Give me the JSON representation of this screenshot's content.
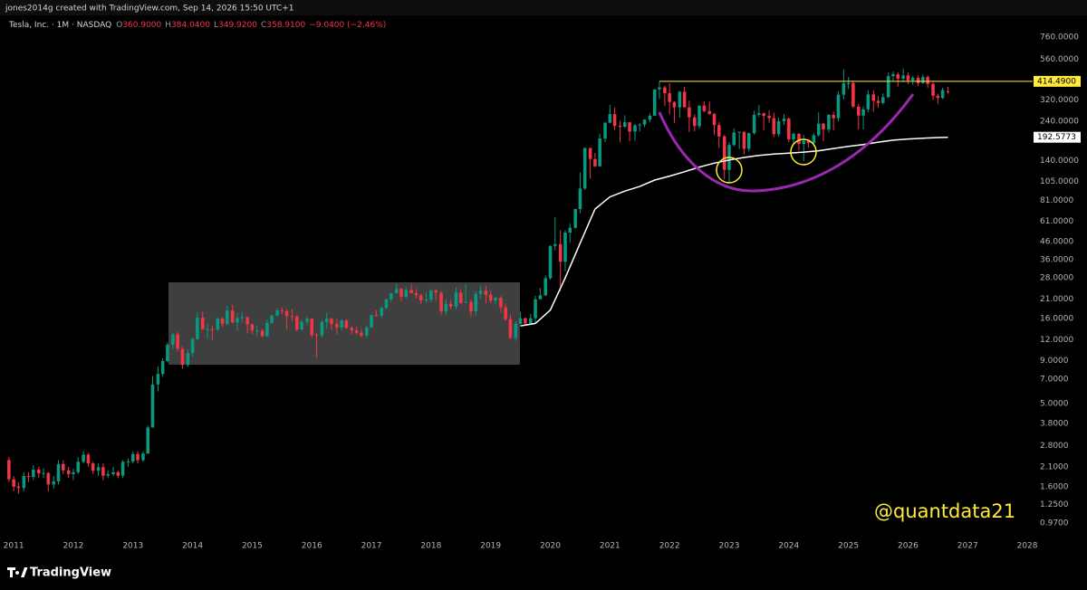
{
  "header": {
    "credit": "jones2014g created with TradingView.com, Sep 14, 2026 15:50 UTC+1",
    "symbol": "Tesla, Inc. · 1M · NASDAQ",
    "ohlc": [
      {
        "key": "O",
        "label": "360.9000"
      },
      {
        "key": "H",
        "label": "384.0400"
      },
      {
        "key": "L",
        "label": "349.9200"
      },
      {
        "key": "C",
        "label": "358.9100"
      }
    ],
    "change": "−9.0400 (−2.46%)"
  },
  "chart_data": {
    "type": "candlestick",
    "log_scale": true,
    "colors": {
      "up": "#089981",
      "down": "#f23645"
    },
    "x": [
      2010.92,
      2011.0,
      2011.08,
      2011.17,
      2011.25,
      2011.33,
      2011.42,
      2011.5,
      2011.58,
      2011.67,
      2011.75,
      2011.83,
      2011.92,
      2012.0,
      2012.08,
      2012.17,
      2012.25,
      2012.33,
      2012.42,
      2012.5,
      2012.58,
      2012.67,
      2012.75,
      2012.83,
      2012.92,
      2013.0,
      2013.08,
      2013.17,
      2013.25,
      2013.33,
      2013.42,
      2013.5,
      2013.58,
      2013.67,
      2013.75,
      2013.83,
      2013.92,
      2014.0,
      2014.08,
      2014.17,
      2014.25,
      2014.33,
      2014.42,
      2014.5,
      2014.58,
      2014.67,
      2014.75,
      2014.83,
      2014.92,
      2015.0,
      2015.08,
      2015.17,
      2015.25,
      2015.33,
      2015.42,
      2015.5,
      2015.58,
      2015.67,
      2015.75,
      2015.83,
      2015.92,
      2016.0,
      2016.08,
      2016.17,
      2016.25,
      2016.33,
      2016.42,
      2016.5,
      2016.58,
      2016.67,
      2016.75,
      2016.83,
      2016.92,
      2017.0,
      2017.08,
      2017.17,
      2017.25,
      2017.33,
      2017.42,
      2017.5,
      2017.58,
      2017.67,
      2017.75,
      2017.83,
      2017.92,
      2018.0,
      2018.08,
      2018.17,
      2018.25,
      2018.33,
      2018.42,
      2018.5,
      2018.58,
      2018.67,
      2018.75,
      2018.83,
      2018.92,
      2019.0,
      2019.08,
      2019.17,
      2019.25,
      2019.33,
      2019.42,
      2019.5,
      2019.58,
      2019.67,
      2019.75,
      2019.83,
      2019.92,
      2020.0,
      2020.08,
      2020.17,
      2020.25,
      2020.33,
      2020.42,
      2020.5,
      2020.58,
      2020.67,
      2020.75,
      2020.83,
      2020.92,
      2021.0,
      2021.08,
      2021.17,
      2021.25,
      2021.33,
      2021.42,
      2021.5,
      2021.58,
      2021.67,
      2021.75,
      2021.83,
      2021.92,
      2022.0,
      2022.08,
      2022.17,
      2022.25,
      2022.33,
      2022.42,
      2022.5,
      2022.58,
      2022.67,
      2022.75,
      2022.83,
      2022.92,
      2023.0,
      2023.08,
      2023.17,
      2023.25,
      2023.33,
      2023.42,
      2023.5,
      2023.58,
      2023.67,
      2023.75,
      2023.83,
      2023.92,
      2024.0,
      2024.08,
      2024.17,
      2024.25,
      2024.33,
      2024.42,
      2024.5,
      2024.58,
      2024.67,
      2024.75,
      2024.83,
      2024.92,
      2025.0,
      2025.08,
      2025.17,
      2025.25,
      2025.33,
      2025.42,
      2025.5,
      2025.58,
      2025.67,
      2025.75,
      2025.83,
      2025.92,
      2026.0,
      2026.08,
      2026.17,
      2026.25,
      2026.33,
      2026.42,
      2026.5,
      2026.58,
      2026.67
    ],
    "open": [
      2.3,
      1.77,
      1.6,
      1.57,
      1.85,
      1.83,
      2.02,
      1.92,
      1.93,
      1.65,
      1.72,
      2.18,
      2.0,
      1.9,
      1.95,
      2.25,
      2.48,
      2.2,
      1.99,
      2.09,
      1.86,
      1.9,
      1.95,
      1.86,
      2.25,
      2.26,
      2.5,
      2.3,
      2.52,
      3.6,
      6.5,
      7.5,
      8.95,
      11.2,
      12.9,
      10.6,
      8.5,
      10.0,
      12.1,
      16.2,
      13.9,
      13.9,
      13.8,
      16.0,
      14.9,
      17.9,
      15.2,
      16.1,
      16.3,
      14.8,
      13.6,
      13.6,
      12.6,
      15.1,
      16.7,
      17.9,
      17.7,
      16.6,
      16.5,
      13.8,
      15.3,
      16.0,
      12.8,
      12.7,
      15.3,
      16.0,
      14.9,
      14.2,
      15.6,
      14.1,
      13.6,
      13.2,
      12.7,
      14.2,
      16.8,
      16.7,
      18.6,
      20.9,
      22.7,
      24.1,
      21.6,
      23.7,
      22.7,
      22.1,
      20.6,
      20.8,
      23.6,
      22.9,
      17.7,
      19.6,
      18.9,
      22.9,
      19.9,
      20.1,
      17.7,
      22.5,
      23.5,
      22.2,
      20.5,
      21.3,
      18.7,
      15.9,
      12.3,
      14.9,
      16.1,
      15.0,
      16.1,
      20.9,
      22.0,
      27.9,
      43.4,
      44.5,
      34.9,
      52.1,
      55.7,
      72.0,
      95.4,
      166.1,
      142.9,
      129.3,
      189.2,
      235.2,
      264.5,
      225.2,
      222.6,
      236.5,
      208.4,
      226.6,
      229.1,
      245.2,
      258.5,
      371.3,
      381.6,
      352.3,
      312.2,
      290.1,
      359.2,
      290.3,
      252.8,
      224.5,
      297.1,
      275.6,
      265.3,
      227.5,
      194.7,
      123.2,
      173.2,
      205.7,
      207.5,
      164.3,
      203.9,
      261.8,
      267.4,
      258.1,
      250.2,
      200.8,
      240.1,
      248.5,
      187.3,
      201.9,
      175.8,
      183.3,
      178.1,
      197.9,
      232.1,
      214.1,
      261.6,
      249.9,
      345.2,
      403.8,
      404.6,
      292.9,
      259.2,
      282.2,
      346.5,
      317.7,
      308.3,
      333.9,
      444.7,
      456.6,
      430.2,
      449.7,
      420.0,
      435.0,
      405.0,
      440.0,
      400.0,
      340.0,
      330.0,
      360.9
    ],
    "high": [
      2.4,
      1.85,
      1.7,
      1.95,
      1.95,
      2.15,
      2.1,
      2.05,
      1.95,
      1.85,
      2.3,
      2.3,
      2.1,
      2.05,
      2.4,
      2.6,
      2.55,
      2.25,
      2.2,
      2.2,
      2.0,
      2.1,
      2.0,
      2.3,
      2.35,
      2.6,
      2.6,
      2.6,
      3.7,
      7.3,
      8.3,
      9.3,
      11.5,
      13.2,
      13.3,
      11.0,
      10.5,
      12.4,
      17.4,
      17.7,
      15.0,
      14.6,
      16.3,
      16.4,
      19.1,
      19.4,
      17.3,
      17.5,
      16.5,
      15.0,
      14.6,
      13.9,
      15.8,
      16.9,
      18.5,
      18.7,
      18.2,
      18.3,
      16.9,
      15.8,
      16.6,
      16.0,
      13.1,
      15.7,
      17.4,
      16.2,
      16.0,
      15.9,
      15.9,
      14.4,
      14.3,
      13.9,
      14.6,
      17.1,
      18.0,
      18.9,
      20.9,
      22.9,
      25.9,
      24.3,
      24.7,
      25.8,
      24.1,
      22.5,
      22.9,
      24.0,
      24.0,
      23.2,
      20.9,
      20.9,
      24.6,
      24.1,
      25.8,
      20.9,
      23.3,
      24.9,
      25.1,
      23.5,
      21.6,
      21.8,
      19.7,
      17.0,
      15.4,
      17.6,
      16.3,
      17.1,
      21.9,
      24.4,
      29.0,
      43.7,
      64.6,
      53.8,
      53.8,
      58.8,
      72.2,
      119.0,
      167.5,
      167.0,
      155.3,
      202.6,
      236.0,
      300.1,
      290.1,
      241.7,
      260.3,
      236.7,
      230.6,
      233.3,
      246.8,
      266.3,
      371.7,
      414.5,
      390.9,
      402.7,
      315.4,
      363.7,
      384.3,
      318.5,
      264.2,
      298.3,
      314.7,
      313.8,
      268.0,
      237.4,
      198.9,
      180.7,
      217.7,
      207.8,
      208.5,
      204.5,
      276.9,
      299.3,
      270.0,
      278.9,
      268.9,
      252.8,
      265.1,
      251.3,
      205.6,
      204.5,
      198.9,
      186.0,
      203.2,
      271.0,
      234.5,
      264.9,
      273.5,
      361.9,
      488.5,
      439.7,
      415.0,
      303.9,
      294.9,
      367.7,
      367.4,
      338.0,
      352.0,
      469.0,
      474.0,
      470.0,
      495.0,
      470.0,
      445.0,
      450.0,
      455.0,
      450.0,
      410.0,
      350.0,
      380.0,
      384.04
    ],
    "low": [
      1.7,
      1.5,
      1.45,
      1.5,
      1.7,
      1.75,
      1.8,
      1.8,
      1.5,
      1.55,
      1.65,
      1.9,
      1.8,
      1.75,
      1.9,
      2.2,
      2.1,
      1.9,
      1.85,
      1.75,
      1.8,
      1.85,
      1.8,
      1.8,
      2.1,
      2.2,
      2.2,
      2.25,
      2.5,
      3.6,
      5.9,
      7.2,
      8.8,
      10.5,
      10.2,
      8.1,
      8.3,
      9.5,
      12.0,
      13.6,
      12.1,
      11.9,
      13.5,
      14.3,
      14.6,
      15.0,
      13.6,
      15.2,
      13.1,
      12.9,
      12.6,
      12.4,
      12.4,
      15.0,
      16.5,
      17.0,
      13.9,
      15.5,
      13.5,
      13.6,
      14.6,
      12.3,
      9.4,
      12.4,
      13.9,
      13.7,
      12.9,
      13.6,
      13.9,
      12.9,
      12.9,
      12.4,
      12.3,
      14.1,
      16.5,
      16.1,
      18.2,
      20.0,
      22.5,
      20.3,
      21.3,
      22.7,
      21.1,
      19.6,
      20.0,
      20.1,
      20.6,
      16.9,
      16.9,
      18.2,
      18.2,
      19.5,
      19.8,
      16.4,
      16.7,
      21.0,
      19.8,
      19.8,
      19.5,
      17.5,
      15.5,
      12.1,
      11.8,
      14.8,
      14.5,
      14.7,
      15.0,
      20.8,
      21.8,
      27.3,
      40.8,
      23.4,
      30.6,
      45.2,
      55.1,
      67.9,
      93.7,
      109.1,
      128.0,
      128.5,
      180.4,
      233.0,
      213.0,
      179.8,
      218.1,
      182.3,
      183.6,
      208.1,
      220.9,
      236.4,
      257.3,
      326.2,
      295.4,
      264.0,
      233.3,
      252.0,
      290.0,
      206.9,
      208.7,
      216.2,
      271.8,
      262.5,
      198.6,
      166.2,
      108.2,
      101.8,
      169.9,
      163.9,
      152.4,
      158.8,
      199.4,
      254.1,
      212.4,
      234.6,
      194.1,
      194.1,
      228.2,
      180.1,
      175.0,
      160.5,
      138.8,
      167.2,
      170.4,
      194.4,
      182.0,
      205.0,
      212.1,
      238.9,
      324.0,
      373.0,
      286.6,
      214.3,
      214.3,
      271.0,
      273.1,
      288.8,
      302.1,
      329.2,
      413.0,
      385.0,
      410.0,
      400.0,
      395.0,
      390.0,
      400.0,
      380.0,
      320.0,
      305.0,
      325.0,
      349.92
    ],
    "close": [
      1.77,
      1.6,
      1.57,
      1.85,
      1.83,
      2.02,
      1.92,
      1.93,
      1.65,
      1.72,
      2.18,
      2.0,
      1.9,
      1.95,
      2.25,
      2.48,
      2.2,
      1.99,
      2.09,
      1.86,
      1.9,
      1.95,
      1.86,
      2.25,
      2.26,
      2.5,
      2.3,
      2.52,
      3.6,
      6.5,
      7.5,
      8.95,
      11.2,
      12.9,
      10.6,
      8.5,
      10.0,
      12.1,
      16.2,
      13.9,
      13.9,
      13.8,
      16.0,
      14.9,
      17.9,
      15.2,
      16.1,
      16.3,
      14.8,
      13.6,
      13.6,
      12.6,
      15.1,
      16.7,
      17.9,
      17.7,
      16.6,
      16.5,
      13.8,
      15.3,
      16.0,
      12.8,
      12.7,
      15.3,
      16.0,
      14.9,
      14.2,
      15.6,
      14.1,
      13.6,
      13.2,
      12.7,
      14.2,
      16.8,
      16.7,
      18.6,
      20.9,
      22.7,
      24.1,
      21.6,
      23.7,
      22.7,
      22.1,
      20.6,
      20.8,
      23.6,
      22.9,
      17.7,
      19.6,
      18.9,
      22.9,
      19.9,
      20.1,
      17.7,
      22.5,
      23.5,
      22.2,
      20.5,
      21.3,
      18.7,
      15.9,
      12.3,
      14.9,
      16.1,
      15.0,
      16.1,
      20.9,
      22.0,
      27.9,
      43.4,
      44.5,
      34.9,
      52.1,
      55.7,
      72.0,
      95.4,
      166.1,
      142.9,
      129.3,
      189.2,
      235.2,
      264.5,
      225.2,
      222.6,
      236.5,
      208.4,
      226.6,
      229.1,
      245.2,
      258.5,
      371.3,
      381.6,
      352.3,
      312.2,
      290.1,
      359.2,
      290.3,
      252.8,
      224.5,
      297.1,
      275.6,
      265.3,
      227.5,
      194.7,
      123.2,
      173.2,
      205.7,
      207.5,
      164.3,
      203.9,
      261.8,
      267.4,
      258.1,
      250.2,
      200.8,
      240.1,
      248.5,
      187.3,
      201.9,
      175.8,
      183.3,
      178.1,
      197.9,
      232.1,
      214.1,
      261.6,
      249.9,
      345.2,
      403.8,
      404.6,
      292.9,
      259.2,
      282.2,
      346.5,
      317.7,
      308.3,
      333.9,
      444.7,
      456.6,
      430.2,
      449.7,
      420.0,
      435.0,
      405.0,
      440.0,
      400.0,
      340.0,
      330.0,
      367.95,
      358.91
    ],
    "moving_average": {
      "color": "#ffffff",
      "label": "192.5773",
      "x": [
        2019.5,
        2019.75,
        2020.0,
        2020.25,
        2020.5,
        2020.75,
        2021.0,
        2021.25,
        2021.5,
        2021.75,
        2022.0,
        2022.25,
        2022.5,
        2022.75,
        2023.0,
        2023.25,
        2023.5,
        2023.75,
        2024.0,
        2024.25,
        2024.5,
        2024.75,
        2025.0,
        2025.25,
        2025.5,
        2025.75,
        2026.0,
        2026.25,
        2026.5,
        2026.67
      ],
      "values": [
        14.5,
        15,
        18,
        28,
        45,
        72,
        85,
        92,
        98,
        107,
        113,
        120,
        128,
        135,
        141,
        146,
        150,
        153,
        155,
        157,
        160,
        165,
        170,
        174,
        180,
        185,
        188,
        190,
        191.8,
        192.5773
      ]
    },
    "resistance": {
      "value": 414.49,
      "label": "414.4900",
      "color": "#ffeb3b"
    },
    "xlim": [
      2010.77,
      2028.09
    ],
    "xticks": [
      2011,
      2012,
      2013,
      2014,
      2015,
      2016,
      2017,
      2018,
      2019,
      2020,
      2021,
      2022,
      2023,
      2024,
      2025,
      2026,
      2027,
      2028
    ],
    "ylim": [
      0.837,
      819
    ],
    "yticks": [
      {
        "value": 760,
        "label": "760.0000"
      },
      {
        "value": 560,
        "label": "560.0000"
      },
      {
        "value": 320,
        "label": "320.0000"
      },
      {
        "value": 240,
        "label": "240.0000"
      },
      {
        "value": 140,
        "label": "140.0000"
      },
      {
        "value": 105,
        "label": "105.0000"
      },
      {
        "value": 81,
        "label": "81.0000"
      },
      {
        "value": 61,
        "label": "61.0000"
      },
      {
        "value": 46,
        "label": "46.0000"
      },
      {
        "value": 36,
        "label": "36.0000"
      },
      {
        "value": 28,
        "label": "28.0000"
      },
      {
        "value": 21,
        "label": "21.0000"
      },
      {
        "value": 16,
        "label": "16.0000"
      },
      {
        "value": 12,
        "label": "12.0000"
      },
      {
        "value": 9,
        "label": "9.0000"
      },
      {
        "value": 7,
        "label": "7.0000"
      },
      {
        "value": 5,
        "label": "5.0000"
      },
      {
        "value": 3.8,
        "label": "3.8000"
      },
      {
        "value": 2.8,
        "label": "2.8000"
      },
      {
        "value": 2.1,
        "label": "2.1000"
      },
      {
        "value": 1.6,
        "label": "1.6000"
      },
      {
        "value": 1.25,
        "label": "1.2500"
      },
      {
        "value": 0.97,
        "label": "0.9700"
      }
    ]
  },
  "watermark": "@quantdata21",
  "brand": "TradingView"
}
